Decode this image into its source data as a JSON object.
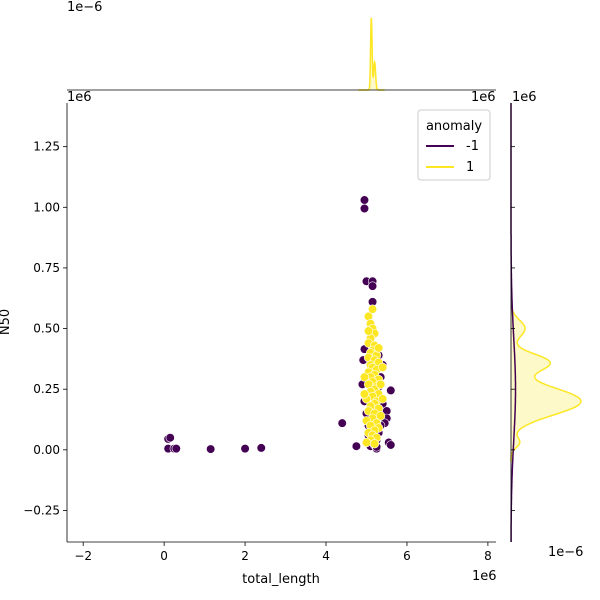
{
  "chart_data": {
    "type": "scatter",
    "xlabel": "total_length",
    "ylabel": "N50",
    "x_scale_label": "1e6",
    "y_scale_label": "1e6",
    "xlim": [
      -2.4,
      8.2
    ],
    "ylim": [
      -0.38,
      1.43
    ],
    "x_ticks": [
      -2,
      0,
      2,
      4,
      6,
      8
    ],
    "x_tick_labels": [
      "−2",
      "0",
      "2",
      "4",
      "6",
      "8"
    ],
    "y_ticks": [
      -0.25,
      0.0,
      0.25,
      0.5,
      0.75,
      1.0,
      1.25
    ],
    "y_tick_labels": [
      "−0.25",
      "0.00",
      "0.25",
      "0.50",
      "0.75",
      "1.00",
      "1.25"
    ],
    "legend": {
      "title": "anomaly",
      "placement": "upper-right",
      "entries": [
        {
          "label": "-1",
          "color": "#440154"
        },
        {
          "label": "1",
          "color": "#fde725"
        }
      ]
    },
    "series": [
      {
        "key": "-1",
        "color": "#440154",
        "points": [
          [
            0.1,
            0.045
          ],
          [
            0.15,
            0.05
          ],
          [
            0.1,
            0.005
          ],
          [
            0.25,
            0.005
          ],
          [
            0.3,
            0.005
          ],
          [
            1.15,
            0.003
          ],
          [
            2.0,
            0.005
          ],
          [
            2.4,
            0.008
          ],
          [
            4.4,
            0.11
          ],
          [
            4.75,
            0.015
          ],
          [
            4.95,
            1.03
          ],
          [
            4.95,
            0.995
          ],
          [
            5.0,
            0.695
          ],
          [
            5.15,
            0.695
          ],
          [
            5.15,
            0.675
          ],
          [
            5.15,
            0.61
          ],
          [
            4.95,
            0.415
          ],
          [
            4.92,
            0.37
          ],
          [
            4.9,
            0.27
          ],
          [
            4.95,
            0.2
          ],
          [
            5.0,
            0.15
          ],
          [
            5.05,
            0.1
          ],
          [
            5.0,
            0.03
          ],
          [
            5.1,
            0.015
          ],
          [
            5.2,
            0.02
          ],
          [
            5.25,
            0.04
          ],
          [
            5.3,
            0.07
          ],
          [
            5.25,
            0.005
          ],
          [
            5.4,
            0.35
          ],
          [
            5.35,
            0.3
          ],
          [
            5.3,
            0.26
          ],
          [
            5.2,
            0.22
          ],
          [
            5.4,
            0.19
          ],
          [
            5.45,
            0.15
          ],
          [
            5.5,
            0.16
          ],
          [
            5.5,
            0.13
          ],
          [
            5.45,
            0.11
          ],
          [
            5.35,
            0.1
          ],
          [
            5.6,
            0.245
          ],
          [
            5.55,
            0.03
          ],
          [
            5.6,
            0.02
          ],
          [
            5.25,
            0.012
          ],
          [
            5.05,
            0.06
          ],
          [
            5.15,
            0.33
          ],
          [
            5.3,
            0.39
          ]
        ]
      },
      {
        "key": "1",
        "color": "#fde725",
        "points": [
          [
            5.05,
            0.55
          ],
          [
            5.1,
            0.52
          ],
          [
            5.15,
            0.5
          ],
          [
            5.2,
            0.48
          ],
          [
            5.1,
            0.46
          ],
          [
            5.05,
            0.44
          ],
          [
            5.2,
            0.43
          ],
          [
            5.15,
            0.41
          ],
          [
            5.1,
            0.4
          ],
          [
            5.25,
            0.39
          ],
          [
            5.05,
            0.38
          ],
          [
            5.2,
            0.37
          ],
          [
            5.3,
            0.36
          ],
          [
            5.1,
            0.35
          ],
          [
            5.15,
            0.34
          ],
          [
            5.25,
            0.33
          ],
          [
            5.05,
            0.32
          ],
          [
            5.2,
            0.31
          ],
          [
            5.1,
            0.3
          ],
          [
            5.3,
            0.29
          ],
          [
            5.15,
            0.28
          ],
          [
            5.05,
            0.27
          ],
          [
            5.25,
            0.26
          ],
          [
            5.2,
            0.25
          ],
          [
            5.1,
            0.24
          ],
          [
            5.3,
            0.23
          ],
          [
            5.15,
            0.22
          ],
          [
            5.0,
            0.21
          ],
          [
            5.25,
            0.2
          ],
          [
            5.2,
            0.19
          ],
          [
            5.1,
            0.18
          ],
          [
            5.3,
            0.17
          ],
          [
            5.05,
            0.16
          ],
          [
            5.2,
            0.15
          ],
          [
            5.35,
            0.14
          ],
          [
            5.15,
            0.13
          ],
          [
            5.0,
            0.12
          ],
          [
            5.25,
            0.11
          ],
          [
            5.1,
            0.1
          ],
          [
            5.3,
            0.09
          ],
          [
            5.2,
            0.08
          ],
          [
            5.05,
            0.07
          ],
          [
            5.15,
            0.06
          ],
          [
            5.25,
            0.05
          ],
          [
            5.1,
            0.04
          ],
          [
            5.0,
            0.03
          ],
          [
            5.2,
            0.025
          ],
          [
            5.15,
            0.58
          ],
          [
            5.05,
            0.49
          ],
          [
            5.35,
            0.27
          ],
          [
            5.4,
            0.21
          ],
          [
            5.4,
            0.34
          ],
          [
            4.95,
            0.3
          ],
          [
            4.95,
            0.23
          ],
          [
            5.3,
            0.42
          ]
        ]
      }
    ],
    "marginal_x": {
      "scale_label": "1e−6",
      "color": "#fde725"
    },
    "marginal_y": {
      "scale_label": "1e−6",
      "color": "#fde725"
    }
  }
}
